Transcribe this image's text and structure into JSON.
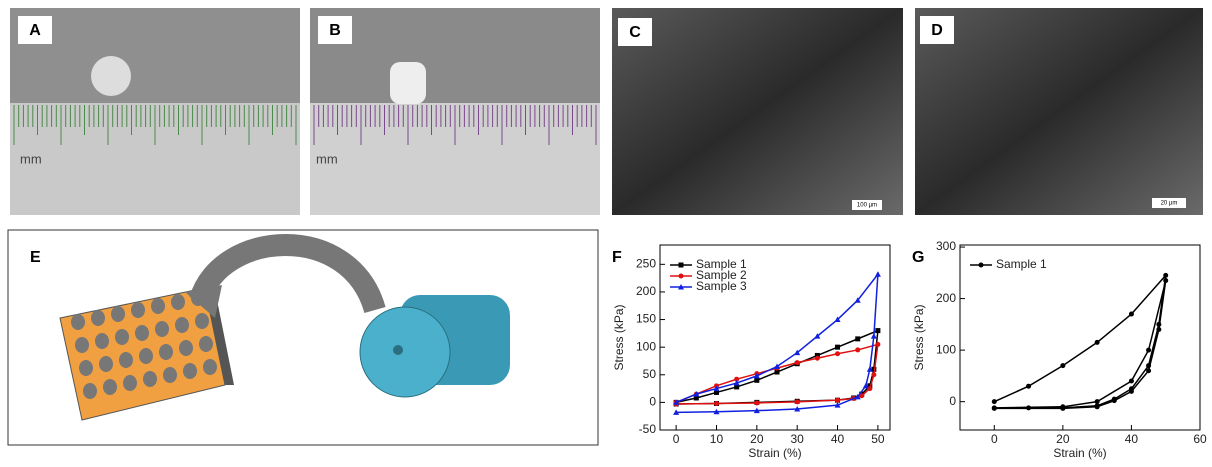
{
  "panels": {
    "labels": [
      "A",
      "B",
      "C",
      "D",
      "E"
    ],
    "scale_bars": [
      "100 µm",
      "20 µm"
    ],
    "ruler_unit": "mm"
  },
  "chart_data": [
    {
      "type": "line",
      "panel_label": "F",
      "x_label": "Strain (%)",
      "y_label": "Stress (kPa)",
      "xlim": [
        -4,
        53
      ],
      "ylim": [
        -50,
        285
      ],
      "xticks": [
        0,
        10,
        20,
        30,
        40,
        50
      ],
      "yticks": [
        -50,
        0,
        50,
        100,
        150,
        200,
        250
      ],
      "legend": "top-left",
      "series": [
        {
          "name": "Sample 1",
          "color": "#000000",
          "marker": "square",
          "x": [
            0,
            5,
            10,
            15,
            20,
            25,
            30,
            35,
            40,
            45,
            50,
            49,
            48,
            46,
            44,
            40,
            30,
            20,
            10,
            0
          ],
          "values": [
            0,
            8,
            18,
            28,
            40,
            55,
            70,
            85,
            100,
            115,
            130,
            60,
            30,
            15,
            8,
            4,
            2,
            0,
            -2,
            -3
          ]
        },
        {
          "name": "Sample 2",
          "color": "#e01010",
          "marker": "circle",
          "x": [
            0,
            5,
            10,
            15,
            20,
            25,
            30,
            35,
            40,
            45,
            50,
            49,
            48,
            46,
            44,
            40,
            30,
            20,
            10,
            0
          ],
          "values": [
            0,
            15,
            30,
            42,
            52,
            62,
            72,
            80,
            88,
            95,
            105,
            50,
            25,
            12,
            7,
            4,
            1,
            -1,
            -2,
            -3
          ]
        },
        {
          "name": "Sample 3",
          "color": "#1020e0",
          "marker": "triangle",
          "x": [
            0,
            5,
            10,
            15,
            20,
            25,
            30,
            35,
            40,
            45,
            50,
            49,
            48,
            47,
            45,
            40,
            30,
            20,
            10,
            0
          ],
          "values": [
            0,
            15,
            25,
            35,
            48,
            65,
            90,
            120,
            150,
            185,
            232,
            120,
            60,
            30,
            10,
            -5,
            -12,
            -15,
            -17,
            -18
          ]
        }
      ]
    },
    {
      "type": "line",
      "panel_label": "G",
      "x_label": "Strain (%)",
      "y_label": "Stress (kPa)",
      "xlim": [
        -10,
        60
      ],
      "ylim": [
        -55,
        304
      ],
      "xticks": [
        0,
        20,
        40,
        60
      ],
      "yticks": [
        0,
        100,
        200,
        300
      ],
      "legend": "top-left",
      "series": [
        {
          "name": "Sample 1",
          "color": "#000000",
          "marker": "circle",
          "x": [
            0,
            10,
            20,
            30,
            40,
            50,
            48,
            45,
            40,
            35,
            30,
            20,
            10,
            0,
            20,
            30,
            40,
            45,
            50,
            48,
            45,
            40,
            35,
            30,
            20,
            0
          ],
          "values": [
            0,
            30,
            70,
            115,
            170,
            245,
            150,
            70,
            25,
            5,
            -8,
            -12,
            -12,
            -12,
            -10,
            0,
            40,
            100,
            235,
            140,
            60,
            20,
            2,
            -10,
            -13,
            -13
          ]
        }
      ]
    }
  ]
}
